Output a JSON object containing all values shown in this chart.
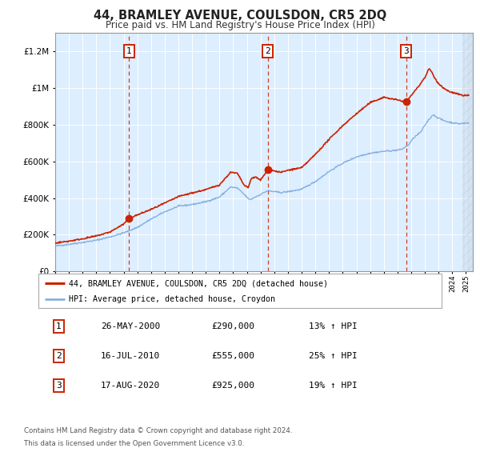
{
  "title": "44, BRAMLEY AVENUE, COULSDON, CR5 2DQ",
  "subtitle": "Price paid vs. HM Land Registry's House Price Index (HPI)",
  "footnote1": "Contains HM Land Registry data © Crown copyright and database right 2024.",
  "footnote2": "This data is licensed under the Open Government Licence v3.0.",
  "legend_line1": "44, BRAMLEY AVENUE, COULSDON, CR5 2DQ (detached house)",
  "legend_line2": "HPI: Average price, detached house, Croydon",
  "transactions": [
    {
      "num": 1,
      "date": "26-MAY-2000",
      "price": "£290,000",
      "pct": "13% ↑ HPI",
      "year_x": 2000.4,
      "val": 290000
    },
    {
      "num": 2,
      "date": "16-JUL-2010",
      "price": "£555,000",
      "pct": "25% ↑ HPI",
      "year_x": 2010.54,
      "val": 555000
    },
    {
      "num": 3,
      "date": "17-AUG-2020",
      "price": "£925,000",
      "pct": "19% ↑ HPI",
      "year_x": 2020.63,
      "val": 925000
    }
  ],
  "hpi_color": "#7aaadd",
  "property_color": "#cc2200",
  "dot_color": "#cc2200",
  "plot_bg": "#ddeeff",
  "grid_color": "#ffffff",
  "dashed_color": "#cc2200",
  "ylim": [
    0,
    1300000
  ],
  "xlim_start": 1995.0,
  "xlim_end": 2025.5
}
